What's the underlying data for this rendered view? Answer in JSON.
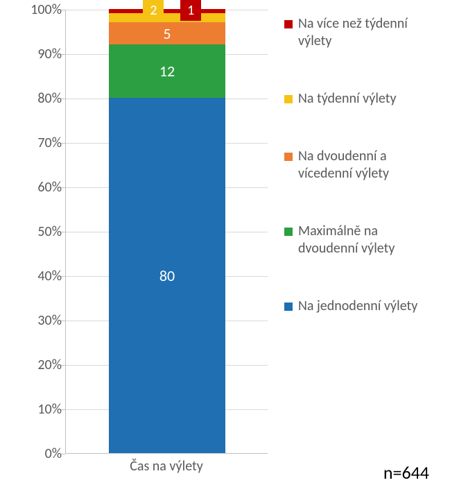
{
  "chart": {
    "type": "stacked-bar-percent",
    "background_color": "#ffffff",
    "grid_color": "#d9d9d9",
    "axis_color": "#bfbfbf",
    "text_color": "#595959",
    "y": {
      "min": 0,
      "max": 100,
      "step": 10,
      "labels": [
        "0%",
        "10%",
        "20%",
        "30%",
        "40%",
        "50%",
        "60%",
        "70%",
        "80%",
        "90%",
        "100%"
      ]
    },
    "x_label": "Čas na výlety",
    "n_label": "n=644",
    "segments": [
      {
        "key": "jednodenni",
        "value": 80,
        "label": "80",
        "color": "#1f6fb2"
      },
      {
        "key": "dvoudenni",
        "value": 12,
        "label": "12",
        "color": "#2c9f42"
      },
      {
        "key": "vicedenni",
        "value": 5,
        "label": "5",
        "color": "#ed7d31"
      },
      {
        "key": "tydenni",
        "value": 2,
        "label": "2",
        "color": "#f4c316",
        "float": "left"
      },
      {
        "key": "vice_tydenni",
        "value": 1,
        "label": "1",
        "color": "#c00000",
        "float": "right"
      }
    ],
    "legend": [
      {
        "key": "vice_tydenni",
        "text": "Na více než týdenní výlety",
        "color": "#c00000"
      },
      {
        "key": "tydenni",
        "text": "Na týdenní výlety",
        "color": "#f4c316"
      },
      {
        "key": "vicedenni",
        "text": "Na dvoudenní a vícedenní výlety",
        "color": "#ed7d31"
      },
      {
        "key": "dvoudenni",
        "text": "Maximálně na dvoudenní výlety",
        "color": "#2c9f42"
      },
      {
        "key": "jednodenni",
        "text": "Na jednodenní výlety",
        "color": "#1f6fb2"
      }
    ]
  }
}
